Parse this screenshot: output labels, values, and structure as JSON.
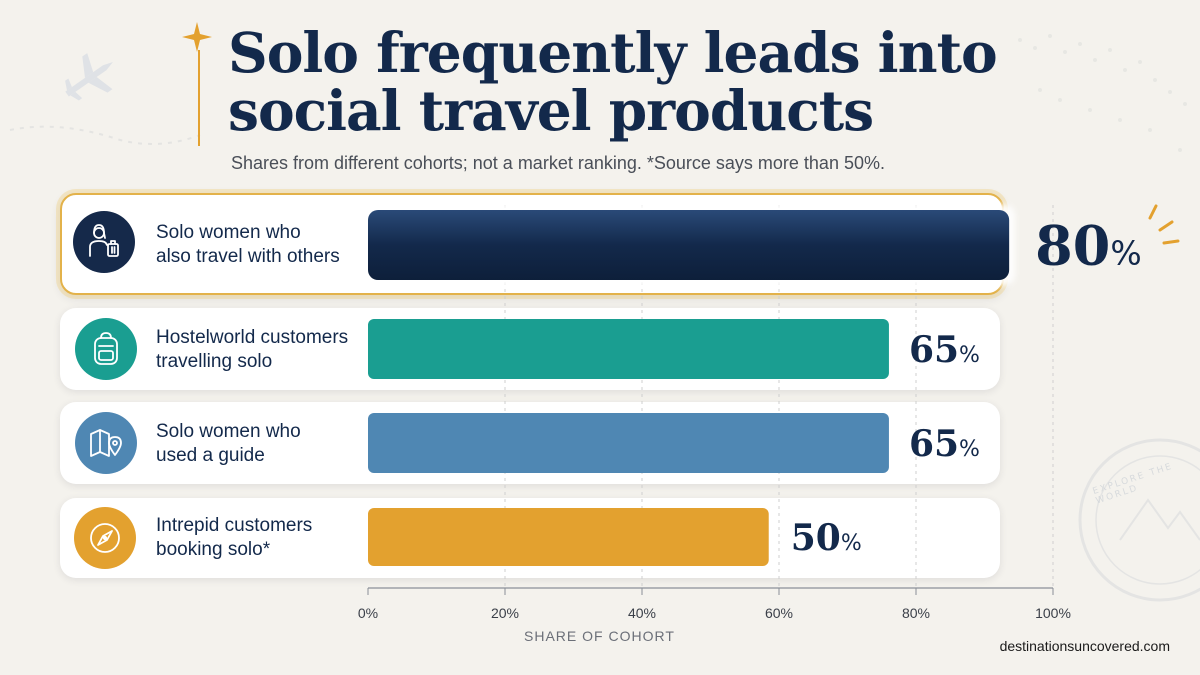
{
  "title": "Solo frequently leads into social travel products",
  "subtitle": "Shares from different cohorts; not a market ranking. *Source says more than 50%.",
  "footer": "destinationsuncovered.com",
  "stamp_text": "EXPLORE THE WORLD",
  "chart_data": {
    "type": "bar",
    "orientation": "horizontal",
    "title": "Solo frequently leads into social travel products",
    "subtitle": "Shares from different cohorts; not a market ranking. *Source says more than 50%.",
    "xlabel": "SHARE OF COHORT",
    "ylabel": "",
    "xlim": [
      0,
      100
    ],
    "ticks": [
      "0%",
      "20%",
      "40%",
      "60%",
      "80%",
      "100%"
    ],
    "tick_values": [
      0,
      20,
      40,
      60,
      80,
      100
    ],
    "grid": true,
    "categories": [
      "Solo women who also travel with others",
      "Hostelworld customers travelling solo",
      "Solo women who used a guide",
      "Intrepid customers booking solo*"
    ],
    "label_lines": [
      [
        "Solo women who",
        "also travel with others"
      ],
      [
        "Hostelworld customers",
        "travelling solo"
      ],
      [
        "Solo women who",
        "used a guide"
      ],
      [
        "Intrepid customers",
        "booking solo*"
      ]
    ],
    "values": [
      80,
      65,
      65,
      50
    ],
    "value_labels": [
      "80",
      "65",
      "65",
      "50"
    ],
    "unit": "%",
    "colors": [
      "#15294a",
      "#1a9e91",
      "#4f87b3",
      "#e3a12f"
    ],
    "icons": [
      "traveler-icon",
      "backpack-icon",
      "map-pin-icon",
      "compass-icon"
    ],
    "highlight_index": 0
  }
}
